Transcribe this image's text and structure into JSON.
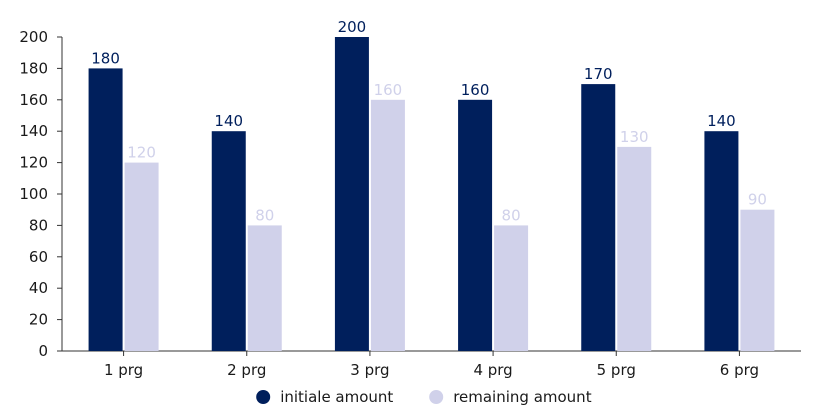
{
  "chart_data": {
    "type": "bar",
    "categories": [
      "1 prg",
      "2 prg",
      "3 prg",
      "4 prg",
      "5 prg",
      "6 prg"
    ],
    "series": [
      {
        "name": "initiale amount",
        "values": [
          180,
          140,
          200,
          160,
          170,
          140
        ],
        "color": "#001f5c"
      },
      {
        "name": "remaining amount",
        "values": [
          120,
          80,
          160,
          80,
          130,
          90
        ],
        "color": "#d0d1ea"
      }
    ],
    "ylim": [
      0,
      200
    ],
    "yticks": [
      0,
      20,
      40,
      60,
      80,
      100,
      120,
      140,
      160,
      180,
      200
    ],
    "grid": false,
    "data_labels": true,
    "legend_position": "bottom"
  }
}
